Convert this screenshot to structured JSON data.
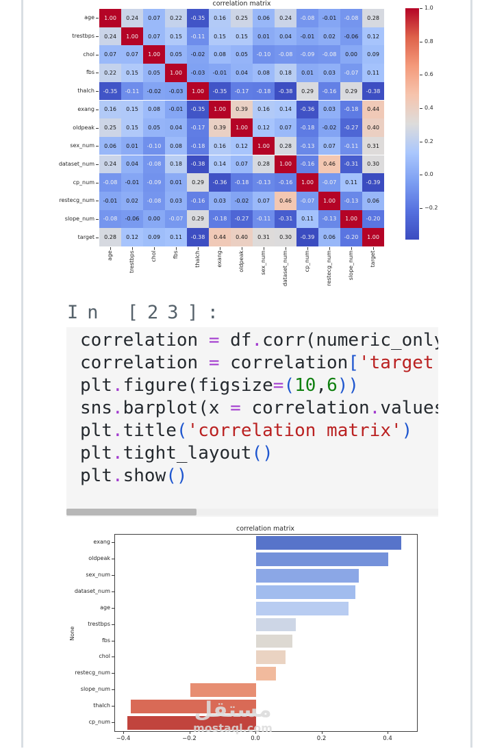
{
  "notebook": {
    "prompt": "In [23]:",
    "code_lines": [
      [
        [
          "n",
          "correlation "
        ],
        [
          "o",
          "="
        ],
        [
          "n",
          " df"
        ],
        [
          "o",
          "."
        ],
        [
          "n",
          "corr"
        ],
        [
          "p",
          "("
        ],
        [
          "n",
          "numeric_only"
        ]
      ],
      [
        [
          "n",
          "correlation "
        ],
        [
          "o",
          "="
        ],
        [
          "n",
          " correlation"
        ],
        [
          "b",
          "["
        ],
        [
          "s",
          "'target'"
        ]
      ],
      [
        [
          "n",
          "plt"
        ],
        [
          "o",
          "."
        ],
        [
          "n",
          "figure"
        ],
        [
          "p",
          "("
        ],
        [
          "n",
          "figsize"
        ],
        [
          "o",
          "="
        ],
        [
          "b",
          "("
        ],
        [
          "num",
          "10"
        ],
        [
          "n",
          ","
        ],
        [
          "num",
          "6"
        ],
        [
          "b",
          "))"
        ]
      ],
      [
        [
          "n",
          "sns"
        ],
        [
          "o",
          "."
        ],
        [
          "n",
          "barplot"
        ],
        [
          "p",
          "("
        ],
        [
          "n",
          "x "
        ],
        [
          "o",
          "="
        ],
        [
          "n",
          " correlation"
        ],
        [
          "o",
          "."
        ],
        [
          "n",
          "values"
        ]
      ],
      [
        [
          "n",
          "plt"
        ],
        [
          "o",
          "."
        ],
        [
          "n",
          "title"
        ],
        [
          "b",
          "("
        ],
        [
          "s",
          "'correlation matrix'"
        ],
        [
          "b",
          ")"
        ]
      ],
      [
        [
          "n",
          "plt"
        ],
        [
          "o",
          "."
        ],
        [
          "n",
          "tight_layout"
        ],
        [
          "b",
          "()"
        ]
      ],
      [
        [
          "n",
          "plt"
        ],
        [
          "o",
          "."
        ],
        [
          "n",
          "show"
        ],
        [
          "b",
          "()"
        ]
      ]
    ]
  },
  "chart_data": [
    {
      "type": "heatmap",
      "title": "correlation matrix",
      "labels": [
        "age",
        "trestbps",
        "chol",
        "fbs",
        "thalch",
        "exang",
        "oldpeak",
        "sex_num",
        "dataset_num",
        "cp_num",
        "restecg_num",
        "slope_num",
        "target"
      ],
      "matrix": [
        [
          1.0,
          0.24,
          0.07,
          0.22,
          -0.35,
          0.16,
          0.25,
          0.06,
          0.24,
          -0.08,
          -0.01,
          -0.08,
          0.28
        ],
        [
          0.24,
          1.0,
          0.07,
          0.15,
          -0.11,
          0.15,
          0.15,
          0.01,
          0.04,
          -0.01,
          0.02,
          -0.06,
          0.12
        ],
        [
          0.07,
          0.07,
          1.0,
          0.05,
          -0.02,
          0.08,
          0.05,
          -0.1,
          -0.08,
          -0.09,
          -0.08,
          0.0,
          0.09
        ],
        [
          0.22,
          0.15,
          0.05,
          1.0,
          -0.03,
          -0.01,
          0.04,
          0.08,
          0.18,
          0.01,
          0.03,
          -0.07,
          0.11
        ],
        [
          -0.35,
          -0.11,
          -0.02,
          -0.03,
          1.0,
          -0.35,
          -0.17,
          -0.18,
          -0.38,
          0.29,
          -0.16,
          0.29,
          -0.38
        ],
        [
          0.16,
          0.15,
          0.08,
          -0.01,
          -0.35,
          1.0,
          0.39,
          0.16,
          0.14,
          -0.36,
          0.03,
          -0.18,
          0.44
        ],
        [
          0.25,
          0.15,
          0.05,
          0.04,
          -0.17,
          0.39,
          1.0,
          0.12,
          0.07,
          -0.18,
          -0.02,
          -0.27,
          0.4
        ],
        [
          0.06,
          0.01,
          -0.1,
          0.08,
          -0.18,
          0.16,
          0.12,
          1.0,
          0.28,
          -0.13,
          0.07,
          -0.11,
          0.31
        ],
        [
          0.24,
          0.04,
          -0.08,
          0.18,
          -0.38,
          0.14,
          0.07,
          0.28,
          1.0,
          -0.16,
          0.46,
          -0.31,
          0.3
        ],
        [
          -0.08,
          -0.01,
          -0.09,
          0.01,
          0.29,
          -0.36,
          -0.18,
          -0.13,
          -0.16,
          1.0,
          -0.07,
          0.11,
          -0.39
        ],
        [
          -0.01,
          0.02,
          -0.08,
          0.03,
          -0.16,
          0.03,
          -0.02,
          0.07,
          0.46,
          -0.07,
          1.0,
          -0.13,
          0.06
        ],
        [
          -0.08,
          -0.06,
          0.0,
          -0.07,
          0.29,
          -0.18,
          -0.27,
          -0.11,
          -0.31,
          0.11,
          -0.13,
          1.0,
          -0.2
        ],
        [
          0.28,
          0.12,
          0.09,
          0.11,
          -0.38,
          0.44,
          0.4,
          0.31,
          0.3,
          -0.39,
          0.06,
          -0.2,
          1.0
        ]
      ],
      "colormap": {
        "name": "coolwarm",
        "vmin": -0.39,
        "vmax": 1.0,
        "anchors": [
          [
            0,
            "#3b4cc0"
          ],
          [
            0.125,
            "#5671df"
          ],
          [
            0.25,
            "#7d9ff2"
          ],
          [
            0.375,
            "#aac7fd"
          ],
          [
            0.5,
            "#dddcdb"
          ],
          [
            0.625,
            "#f6c4ad"
          ],
          [
            0.75,
            "#f49a7b"
          ],
          [
            0.875,
            "#de614a"
          ],
          [
            1,
            "#b40426"
          ]
        ]
      },
      "colorbar_ticks": [
        1.0,
        0.8,
        0.6,
        0.4,
        0.2,
        0.0,
        -0.2
      ],
      "text_white_below": -0.065,
      "text_white_above": 0.85
    },
    {
      "type": "bar",
      "orientation": "horizontal",
      "title": "correlation matrix",
      "ylabel": "None",
      "categories": [
        "exang",
        "oldpeak",
        "sex_num",
        "dataset_num",
        "age",
        "trestbps",
        "fbs",
        "chol",
        "restecg_num",
        "slope_num",
        "thalch",
        "cp_num"
      ],
      "values": [
        0.44,
        0.4,
        0.31,
        0.3,
        0.28,
        0.12,
        0.11,
        0.09,
        0.06,
        -0.2,
        -0.38,
        -0.39
      ],
      "bar_colors": [
        "#5774ca",
        "#7491da",
        "#8ba7e6",
        "#a1bcee",
        "#b8ccf1",
        "#cdd6e6",
        "#ddd9d2",
        "#ead3c2",
        "#f1ba9d",
        "#e78e72",
        "#d96a56",
        "#c1443d"
      ],
      "xticks": [
        -0.4,
        -0.2,
        0.0,
        0.2,
        0.4
      ],
      "xlim": [
        -0.427,
        0.487
      ],
      "grid": false,
      "legend": false
    }
  ],
  "watermark": {
    "arabic": "مستقل",
    "latin": "mostaql.com"
  }
}
